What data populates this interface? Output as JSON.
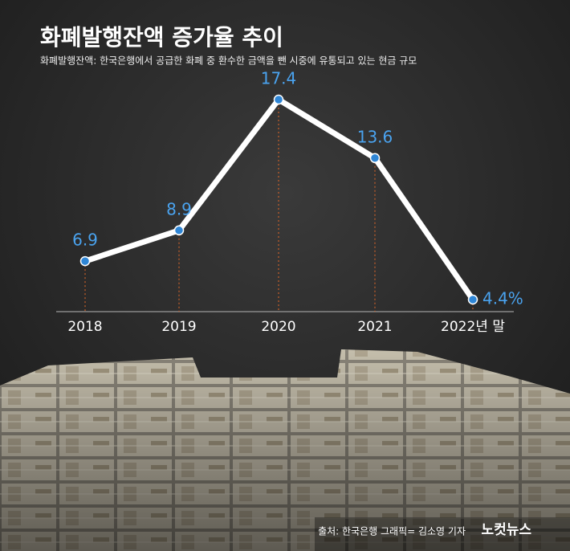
{
  "chart_data": {
    "type": "line",
    "title": "화폐발행잔액 증가율 추이",
    "subtitle": "화폐발행잔액: 한국은행에서 공급한 화폐 중 환수한 금액을 뺀 시중에 유통되고 있는 현금 규모",
    "categories": [
      "2018",
      "2019",
      "2020",
      "2021",
      "2022년 말"
    ],
    "values": [
      6.9,
      8.9,
      17.4,
      13.6,
      4.4
    ],
    "value_labels": [
      "6.9",
      "8.9",
      "17.4",
      "13.6",
      "4.4%"
    ],
    "color": "#ffffff",
    "marker_color": "#2f86d6",
    "label_color": "#4aa3ef",
    "source": "출처: 한국은행   그래픽= 김소영 기자",
    "logo": "노컷뉴스"
  }
}
